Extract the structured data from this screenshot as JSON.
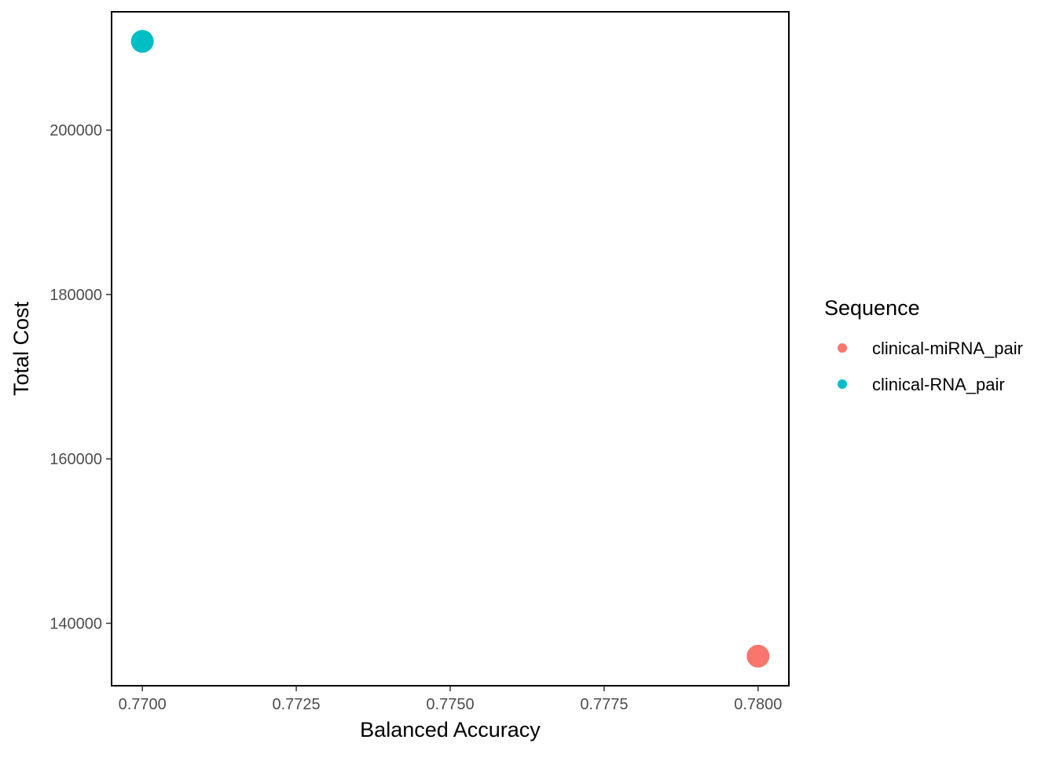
{
  "chart_data": {
    "type": "scatter",
    "title": "",
    "xlabel": "Balanced Accuracy",
    "ylabel": "Total Cost",
    "xlim": [
      0.7695,
      0.7805
    ],
    "ylim": [
      132400,
      214400
    ],
    "x_ticks": [
      0.77,
      0.7725,
      0.775,
      0.7775,
      0.78
    ],
    "x_tick_labels": [
      "0.7700",
      "0.7725",
      "0.7750",
      "0.7775",
      "0.7800"
    ],
    "y_ticks": [
      140000,
      160000,
      180000,
      200000
    ],
    "y_tick_labels": [
      "140000",
      "160000",
      "180000",
      "200000"
    ],
    "grid": false,
    "legend": {
      "title": "Sequence",
      "placement": "right"
    },
    "series": [
      {
        "name": "clinical-miRNA_pair",
        "color": "#F8766D",
        "points": [
          {
            "x": 0.78,
            "y": 136000
          }
        ]
      },
      {
        "name": "clinical-RNA_pair",
        "color": "#00BFC4",
        "points": [
          {
            "x": 0.77,
            "y": 210800
          }
        ]
      }
    ]
  }
}
